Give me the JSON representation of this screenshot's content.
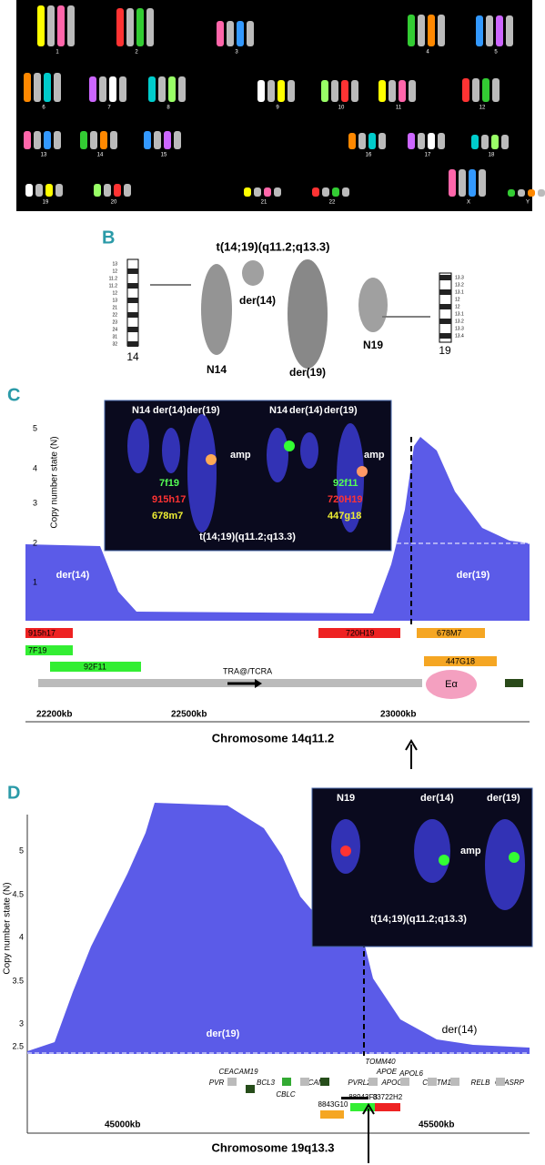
{
  "panel_a": {
    "chromosome_labels": [
      "1",
      "2",
      "3",
      "4",
      "5",
      "6",
      "7",
      "8",
      "9",
      "10",
      "11",
      "12",
      "13",
      "14",
      "15",
      "16",
      "17",
      "18",
      "19",
      "20",
      "21",
      "22",
      "X",
      "Y"
    ]
  },
  "panel_b": {
    "label": "B",
    "title": "t(14;19)(q11.2;q13.3)",
    "chromosomes": [
      "der(14)",
      "N14",
      "der(19)",
      "N19"
    ],
    "ideogram_14": {
      "bands": [
        "13",
        "12",
        "11.2",
        "11.2",
        "12",
        "13",
        "21",
        "22",
        "23",
        "24",
        "31",
        "32"
      ],
      "number": "14"
    },
    "ideogram_19": {
      "bands": [
        "13.3",
        "13.2",
        "13.1",
        "12",
        "12",
        "13.1",
        "13.2",
        "13.3",
        "13.4"
      ],
      "number": "19"
    }
  },
  "panel_c": {
    "label": "C",
    "y_axis_title": "Copy number state (N)",
    "y_ticks": [
      "5",
      "4",
      "3",
      "2",
      "1"
    ],
    "inset": {
      "cell_labels": [
        "N14",
        "der(14)",
        "der(19)",
        "N14",
        "der(14)",
        "der(19)"
      ],
      "amp": [
        "amp",
        "amp"
      ],
      "probes_left": [
        "7f19",
        "915h17",
        "678m7"
      ],
      "probes_right": [
        "92f11",
        "720H19",
        "447g18"
      ],
      "caption": "t(14;19)(q11.2;q13.3)"
    },
    "regions": [
      "der(14)",
      "der(19)"
    ],
    "clones": [
      "915h17",
      "7F19",
      "92F11",
      "720H19",
      "678M7",
      "447G18"
    ],
    "gene_labels": [
      "TRA@/TCRA",
      "Eα"
    ],
    "x_ticks": [
      "22200kb",
      "22500kb",
      "23000kb"
    ],
    "x_axis_title": "Chromosome 14q11.2"
  },
  "panel_d": {
    "label": "D",
    "y_axis_title": "Copy number state (N)",
    "y_ticks": [
      "5",
      "4.5",
      "4",
      "3.5",
      "3",
      "2.5"
    ],
    "inset": {
      "cell_labels": [
        "N19",
        "der(14)",
        "der(19)"
      ],
      "amp": "amp",
      "caption": "t(14;19)(q11.2;q13.3)"
    },
    "regions": [
      "der(19)",
      "der(14)"
    ],
    "genes": [
      "PVR",
      "CEACAM19",
      "BCL3",
      "CBLC",
      "BCAM",
      "PVRL2",
      "TOMM40",
      "APOE",
      "APOC2",
      "APOL6",
      "CLPTM1",
      "RELB",
      "CLASRP"
    ],
    "clones": [
      "8843G10",
      "88943F3",
      "83722H2"
    ],
    "x_ticks": [
      "45000kb",
      "45500kb"
    ],
    "x_axis_title": "Chromosome 19q13.3"
  }
}
